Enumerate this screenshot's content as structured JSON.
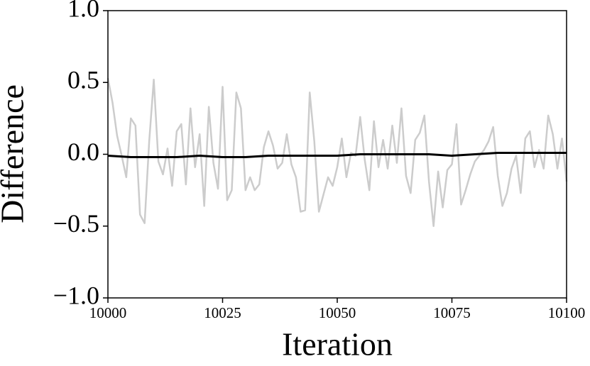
{
  "chart_data": {
    "type": "line",
    "x_label": "Iteration",
    "y_label": "Difference",
    "xlim": [
      10000,
      10100
    ],
    "ylim": [
      -1.0,
      1.0
    ],
    "xticks": [
      10000,
      10025,
      10050,
      10075,
      10100
    ],
    "yticks": [
      {
        "value": -1.0,
        "label": "−1.0"
      },
      {
        "value": -0.5,
        "label": "−0.5"
      },
      {
        "value": 0.0,
        "label": "0.0"
      },
      {
        "value": 0.5,
        "label": "0.5"
      },
      {
        "value": 1.0,
        "label": "1.0"
      }
    ],
    "series": [
      {
        "color": "#cccccc",
        "x": [
          10000,
          10001,
          10002,
          10003,
          10004,
          10005,
          10006,
          10007,
          10008,
          10009,
          10010,
          10011,
          10012,
          10013,
          10014,
          10015,
          10016,
          10017,
          10018,
          10019,
          10020,
          10021,
          10022,
          10023,
          10024,
          10025,
          10026,
          10027,
          10028,
          10029,
          10030,
          10031,
          10032,
          10033,
          10034,
          10035,
          10036,
          10037,
          10038,
          10039,
          10040,
          10041,
          10042,
          10043,
          10044,
          10045,
          10046,
          10047,
          10048,
          10049,
          10050,
          10051,
          10052,
          10053,
          10054,
          10055,
          10056,
          10057,
          10058,
          10059,
          10060,
          10061,
          10062,
          10063,
          10064,
          10065,
          10066,
          10067,
          10068,
          10069,
          10070,
          10071,
          10072,
          10073,
          10074,
          10075,
          10076,
          10077,
          10078,
          10079,
          10080,
          10081,
          10082,
          10083,
          10084,
          10085,
          10086,
          10087,
          10088,
          10089,
          10090,
          10091,
          10092,
          10093,
          10094,
          10095,
          10096,
          10097,
          10098,
          10099,
          10100
        ],
        "values": [
          0.53,
          0.36,
          0.13,
          -0.01,
          -0.16,
          0.25,
          0.2,
          -0.42,
          -0.48,
          0.09,
          0.52,
          -0.05,
          -0.14,
          0.04,
          -0.22,
          0.16,
          0.21,
          -0.21,
          0.32,
          -0.09,
          0.14,
          -0.36,
          0.33,
          -0.06,
          -0.24,
          0.47,
          -0.32,
          -0.25,
          0.43,
          0.32,
          -0.25,
          -0.16,
          -0.25,
          -0.21,
          0.05,
          0.16,
          0.06,
          -0.1,
          -0.06,
          0.14,
          -0.07,
          -0.16,
          -0.4,
          -0.39,
          0.43,
          0.09,
          -0.4,
          -0.28,
          -0.16,
          -0.22,
          -0.09,
          0.11,
          -0.16,
          0.01,
          -0.01,
          0.26,
          -0.04,
          -0.25,
          0.23,
          -0.09,
          0.1,
          -0.1,
          0.2,
          -0.06,
          0.32,
          -0.15,
          -0.27,
          0.1,
          0.15,
          0.27,
          -0.19,
          -0.5,
          -0.12,
          -0.37,
          -0.11,
          -0.07,
          0.21,
          -0.35,
          -0.25,
          -0.14,
          -0.05,
          -0.01,
          0.03,
          0.09,
          0.19,
          -0.15,
          -0.36,
          -0.27,
          -0.1,
          -0.01,
          -0.27,
          0.11,
          0.16,
          -0.09,
          0.03,
          -0.1,
          0.27,
          0.14,
          -0.1,
          0.11,
          -0.19
        ]
      },
      {
        "color": "#000000",
        "x": [
          10000,
          10005,
          10010,
          10015,
          10020,
          10025,
          10030,
          10035,
          10040,
          10045,
          10050,
          10055,
          10060,
          10065,
          10070,
          10075,
          10080,
          10085,
          10090,
          10095,
          10100
        ],
        "values": [
          -0.01,
          -0.02,
          -0.02,
          -0.02,
          -0.01,
          -0.02,
          -0.02,
          -0.01,
          -0.01,
          -0.01,
          -0.01,
          0,
          0,
          0,
          0,
          -0.01,
          0,
          0.01,
          0.01,
          0.01,
          0.01
        ]
      }
    ]
  }
}
